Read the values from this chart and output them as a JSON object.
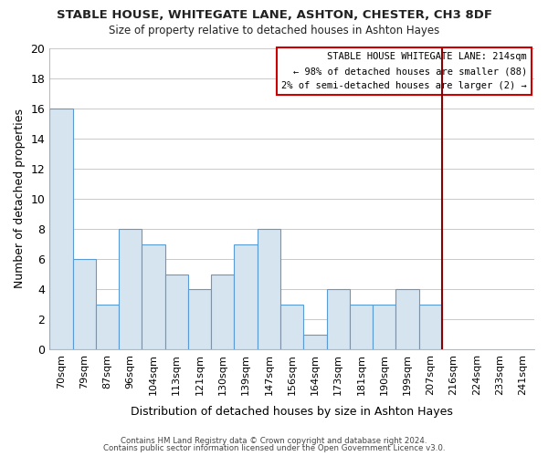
{
  "title": "STABLE HOUSE, WHITEGATE LANE, ASHTON, CHESTER, CH3 8DF",
  "subtitle": "Size of property relative to detached houses in Ashton Hayes",
  "xlabel": "Distribution of detached houses by size in Ashton Hayes",
  "ylabel": "Number of detached properties",
  "footnote1": "Contains HM Land Registry data © Crown copyright and database right 2024.",
  "footnote2": "Contains public sector information licensed under the Open Government Licence v3.0.",
  "bar_labels": [
    "70sqm",
    "79sqm",
    "87sqm",
    "96sqm",
    "104sqm",
    "113sqm",
    "121sqm",
    "130sqm",
    "139sqm",
    "147sqm",
    "156sqm",
    "164sqm",
    "173sqm",
    "181sqm",
    "190sqm",
    "199sqm",
    "207sqm",
    "216sqm",
    "224sqm",
    "233sqm",
    "241sqm"
  ],
  "bar_values": [
    16,
    6,
    3,
    8,
    7,
    5,
    4,
    5,
    7,
    8,
    3,
    1,
    4,
    3,
    3,
    4,
    3,
    0,
    0,
    0,
    0
  ],
  "bar_color": "#d6e4f0",
  "bar_edge_color": "#5b9bd5",
  "grid_color": "#c0c0c0",
  "background_color": "#ffffff",
  "plot_bg_color": "#ffffff",
  "ylim": [
    0,
    20
  ],
  "yticks": [
    0,
    2,
    4,
    6,
    8,
    10,
    12,
    14,
    16,
    18,
    20
  ],
  "vline_x": 16.5,
  "vline_color": "#8b0000",
  "box_text_line1": "STABLE HOUSE WHITEGATE LANE: 214sqm",
  "box_text_line2": "← 98% of detached houses are smaller (88)",
  "box_text_line3": "2% of semi-detached houses are larger (2) →",
  "box_color": "white",
  "box_edge_color": "#cc0000"
}
